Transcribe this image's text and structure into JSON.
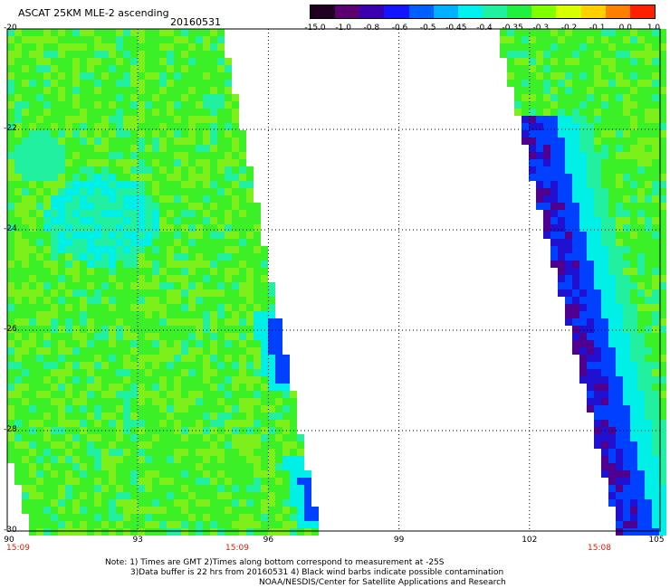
{
  "header": {
    "title": "ASCAT 25KM MLE-2 ascending",
    "date": "20160531"
  },
  "colorbar": {
    "colors": [
      "#200020",
      "#5a0070",
      "#3a00b0",
      "#1414ff",
      "#0060ff",
      "#00b0ff",
      "#00f0f0",
      "#20f0a0",
      "#20f040",
      "#80ff00",
      "#d8ff00",
      "#ffd000",
      "#ff8000",
      "#ff2000"
    ],
    "labels": [
      "-15.0",
      "-1.0",
      "-0.8",
      "-0.6",
      "-0.5",
      "-0.45",
      "-0.4",
      "-0.35",
      "-0.3",
      "-0.2",
      "-0.1",
      "0.0",
      "1.0"
    ]
  },
  "axes": {
    "lat_labels": [
      "-20",
      "-22",
      "-24",
      "-26",
      "-28",
      "-30"
    ],
    "lon_labels": [
      "90",
      "93",
      "96",
      "99",
      "102",
      "105"
    ],
    "lat_range": [
      -30,
      -20
    ],
    "lon_range": [
      90,
      105
    ]
  },
  "times": [
    "15:09",
    "15:09",
    "15:08"
  ],
  "note": {
    "line1": "Note: 1) Times are GMT 2)Times along bottom correspond to measurement at -25S",
    "line2": "3)Data buffer is 22 hrs from 20160531 4) Black wind barbs indicate possible contamination",
    "line3": "NOAA/NESDIS/Center for Satellite Applications and Research"
  },
  "swath_colors": {
    "base": "#3cf028",
    "light": "#7cf018",
    "cyan": "#00f0e8",
    "teal": "#20f0a0",
    "blue": "#0040ff",
    "dark_blue": "#2010d0",
    "purple": "#500090"
  }
}
